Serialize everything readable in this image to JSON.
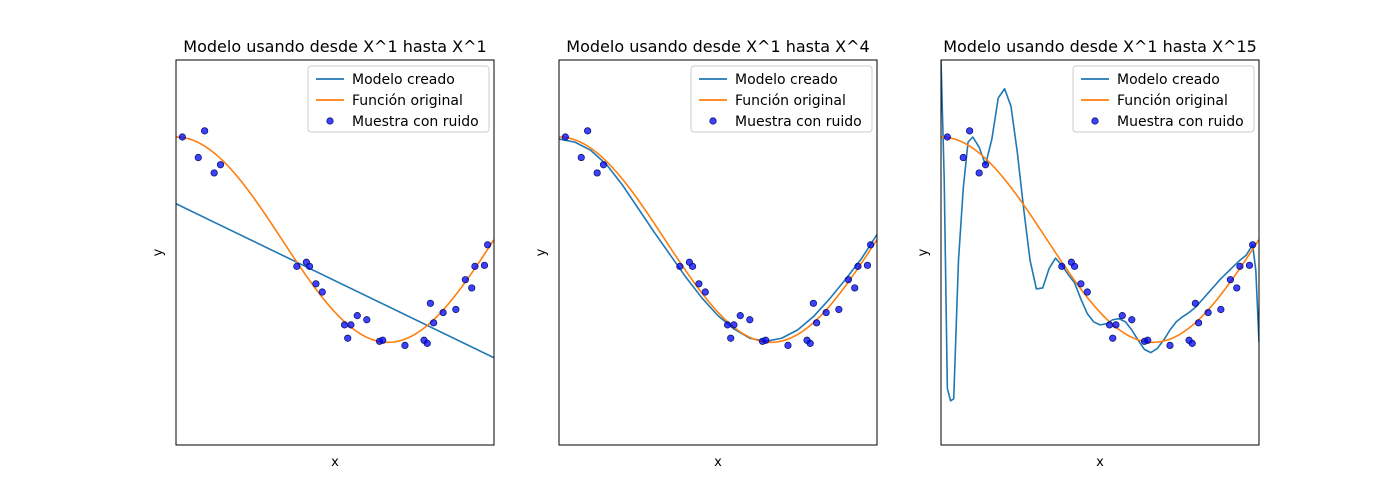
{
  "chart_data": [
    {
      "type": "line",
      "title": "Modelo usando desde X^1 hasta X^1",
      "xlabel": "x",
      "ylabel": "y",
      "xlim": [
        0,
        1
      ],
      "ylim": [
        -2,
        1.75
      ],
      "grid": false,
      "legend_position": "top-right",
      "legend": [
        "Modelo creado",
        "Función original",
        "Muestra con ruido"
      ],
      "series": [
        {
          "name": "Modelo creado",
          "kind": "line",
          "color": "#1f77b4",
          "x": [
            0,
            1
          ],
          "y": [
            0.35,
            -1.15
          ]
        },
        {
          "name": "Función original",
          "kind": "line",
          "color": "#ff7f0e",
          "fn": "cos(1.5*pi*x)"
        },
        {
          "name": "Muestra con ruido",
          "kind": "scatter",
          "color": "#0000ff",
          "x": [
            0.02,
            0.07,
            0.09,
            0.12,
            0.14,
            0.38,
            0.41,
            0.42,
            0.44,
            0.46,
            0.53,
            0.54,
            0.55,
            0.57,
            0.6,
            0.64,
            0.65,
            0.72,
            0.78,
            0.79,
            0.8,
            0.81,
            0.84,
            0.88,
            0.91,
            0.93,
            0.94,
            0.97,
            0.98
          ],
          "y": [
            1.0,
            0.8,
            1.06,
            0.65,
            0.73,
            -0.26,
            -0.22,
            -0.26,
            -0.43,
            -0.51,
            -0.83,
            -0.96,
            -0.83,
            -0.74,
            -0.78,
            -0.99,
            -0.98,
            -1.03,
            -0.98,
            -1.01,
            -0.62,
            -0.81,
            -0.71,
            -0.68,
            -0.39,
            -0.47,
            -0.26,
            -0.25,
            -0.05
          ]
        }
      ]
    },
    {
      "type": "line",
      "title": "Modelo usando desde X^1 hasta X^4",
      "xlabel": "x",
      "ylabel": "y",
      "xlim": [
        0,
        1
      ],
      "ylim": [
        -2,
        1.75
      ],
      "grid": false,
      "legend_position": "top-right",
      "legend": [
        "Modelo creado",
        "Función original",
        "Muestra con ruido"
      ],
      "series": [
        {
          "name": "Modelo creado",
          "kind": "line",
          "color": "#1f77b4",
          "x": [
            0,
            0.05,
            0.1,
            0.15,
            0.2,
            0.25,
            0.3,
            0.35,
            0.4,
            0.45,
            0.5,
            0.55,
            0.6,
            0.65,
            0.7,
            0.75,
            0.8,
            0.85,
            0.9,
            0.95,
            1.0
          ],
          "y": [
            0.98,
            0.95,
            0.87,
            0.73,
            0.53,
            0.3,
            0.07,
            -0.15,
            -0.37,
            -0.57,
            -0.74,
            -0.87,
            -0.96,
            -0.99,
            -0.96,
            -0.88,
            -0.75,
            -0.58,
            -0.39,
            -0.19,
            0.05
          ]
        },
        {
          "name": "Función original",
          "kind": "line",
          "color": "#ff7f0e",
          "fn": "cos(1.5*pi*x)"
        },
        {
          "name": "Muestra con ruido",
          "kind": "scatter",
          "color": "#0000ff",
          "x": [
            0.02,
            0.07,
            0.09,
            0.12,
            0.14,
            0.38,
            0.41,
            0.42,
            0.44,
            0.46,
            0.53,
            0.54,
            0.55,
            0.57,
            0.6,
            0.64,
            0.65,
            0.72,
            0.78,
            0.79,
            0.8,
            0.81,
            0.84,
            0.88,
            0.91,
            0.93,
            0.94,
            0.97,
            0.98
          ],
          "y": [
            1.0,
            0.8,
            1.06,
            0.65,
            0.73,
            -0.26,
            -0.22,
            -0.26,
            -0.43,
            -0.51,
            -0.83,
            -0.96,
            -0.83,
            -0.74,
            -0.78,
            -0.99,
            -0.98,
            -1.03,
            -0.98,
            -1.01,
            -0.62,
            -0.81,
            -0.71,
            -0.68,
            -0.39,
            -0.47,
            -0.26,
            -0.25,
            -0.05
          ]
        }
      ]
    },
    {
      "type": "line",
      "title": "Modelo usando desde X^1 hasta X^15",
      "xlabel": "x",
      "ylabel": "y",
      "xlim": [
        0,
        1
      ],
      "ylim": [
        -2,
        1.75
      ],
      "grid": false,
      "legend_position": "top-right",
      "legend": [
        "Modelo creado",
        "Función original",
        "Muestra con ruido"
      ],
      "series": [
        {
          "name": "Modelo creado",
          "kind": "line",
          "color": "#1f77b4",
          "x": [
            0.0,
            0.01,
            0.02,
            0.03,
            0.04,
            0.055,
            0.07,
            0.085,
            0.1,
            0.12,
            0.14,
            0.16,
            0.18,
            0.2,
            0.22,
            0.24,
            0.26,
            0.28,
            0.3,
            0.32,
            0.34,
            0.36,
            0.38,
            0.4,
            0.42,
            0.44,
            0.46,
            0.48,
            0.5,
            0.52,
            0.54,
            0.56,
            0.58,
            0.6,
            0.62,
            0.64,
            0.66,
            0.68,
            0.7,
            0.72,
            0.74,
            0.76,
            0.78,
            0.8,
            0.82,
            0.84,
            0.86,
            0.88,
            0.9,
            0.92,
            0.94,
            0.96,
            0.98,
            0.99,
            1.0
          ],
          "y": [
            1.75,
            0.6,
            -1.45,
            -1.57,
            -1.55,
            -0.2,
            0.5,
            0.95,
            1.0,
            0.9,
            0.73,
            0.98,
            1.38,
            1.47,
            1.3,
            0.85,
            0.3,
            -0.2,
            -0.48,
            -0.47,
            -0.28,
            -0.18,
            -0.25,
            -0.34,
            -0.42,
            -0.58,
            -0.72,
            -0.8,
            -0.83,
            -0.82,
            -0.78,
            -0.77,
            -0.8,
            -0.88,
            -0.98,
            -1.07,
            -1.1,
            -1.06,
            -0.98,
            -0.88,
            -0.8,
            -0.75,
            -0.71,
            -0.66,
            -0.59,
            -0.52,
            -0.45,
            -0.38,
            -0.32,
            -0.26,
            -0.2,
            -0.15,
            -0.05,
            -0.3,
            -1.0
          ]
        },
        {
          "name": "Función original",
          "kind": "line",
          "color": "#ff7f0e",
          "fn": "cos(1.5*pi*x)"
        },
        {
          "name": "Muestra con ruido",
          "kind": "scatter",
          "color": "#0000ff",
          "x": [
            0.02,
            0.07,
            0.09,
            0.12,
            0.14,
            0.38,
            0.41,
            0.42,
            0.44,
            0.46,
            0.53,
            0.54,
            0.55,
            0.57,
            0.6,
            0.64,
            0.65,
            0.72,
            0.78,
            0.79,
            0.8,
            0.81,
            0.84,
            0.88,
            0.91,
            0.93,
            0.94,
            0.97,
            0.98
          ],
          "y": [
            1.0,
            0.8,
            1.06,
            0.65,
            0.73,
            -0.26,
            -0.22,
            -0.26,
            -0.43,
            -0.51,
            -0.83,
            -0.96,
            -0.83,
            -0.74,
            -0.78,
            -0.99,
            -0.98,
            -1.03,
            -0.98,
            -1.01,
            -0.62,
            -0.81,
            -0.71,
            -0.68,
            -0.39,
            -0.47,
            -0.26,
            -0.25,
            -0.05
          ]
        }
      ]
    }
  ]
}
